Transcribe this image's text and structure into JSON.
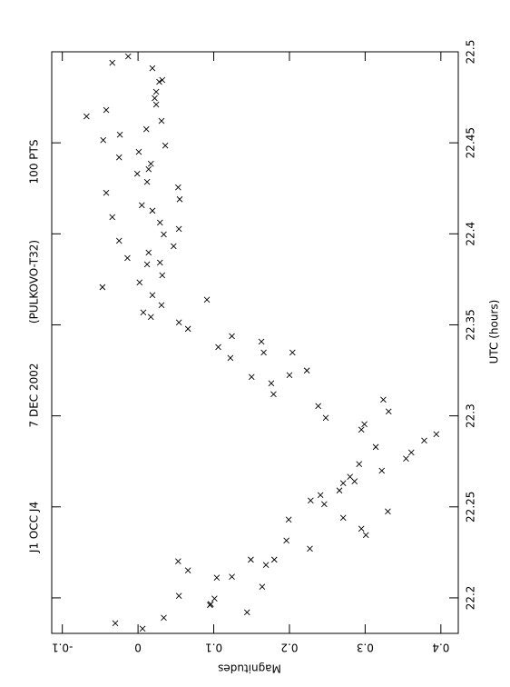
{
  "chart_data": {
    "type": "scatter",
    "title_parts": [
      "J1 OCC J4",
      "7 DEC 2002",
      "(PULKOVO-T32)",
      "100 PTS"
    ],
    "x_label": "UTC (hours)",
    "y_label": "Magnitudes",
    "xlim": [
      22.1805,
      22.5
    ],
    "ylim": [
      -0.114,
      0.423
    ],
    "xticks": [
      22.2,
      22.25,
      22.3,
      22.35,
      22.4,
      22.45,
      22.5
    ],
    "yticks": [
      -0.1,
      0,
      0.1,
      0.2,
      0.3,
      0.4
    ],
    "color": "#000000",
    "x": [
      22.494,
      22.4975,
      22.491,
      22.478,
      22.4835,
      22.4845,
      22.4745,
      22.471,
      22.4645,
      22.468,
      22.462,
      22.4515,
      22.4575,
      22.4545,
      22.4485,
      22.445,
      22.442,
      22.4385,
      22.433,
      22.4355,
      22.4285,
      22.4225,
      22.4255,
      22.419,
      22.4157,
      22.4092,
      22.4127,
      22.4062,
      22.3962,
      22.4027,
      22.3997,
      22.3932,
      22.3867,
      22.3897,
      22.3832,
      22.3842,
      22.3707,
      22.3733,
      22.3772,
      22.3663,
      22.3608,
      22.3568,
      22.3543,
      22.3638,
      22.3513,
      22.3478,
      22.3378,
      22.3438,
      22.3408,
      22.3318,
      22.3348,
      22.3348,
      22.3214,
      22.3224,
      22.3249,
      22.3179,
      22.3119,
      22.3054,
      22.2989,
      22.3089,
      22.3024,
      22.2954,
      22.2924,
      22.2829,
      22.2864,
      22.2899,
      22.2799,
      22.2699,
      22.2735,
      22.2765,
      22.2665,
      22.263,
      22.264,
      22.2565,
      22.2535,
      22.2515,
      22.259,
      22.244,
      22.243,
      22.238,
      22.2345,
      22.2475,
      22.227,
      22.2315,
      22.221,
      22.221,
      22.2111,
      22.2181,
      22.2061,
      22.1961,
      22.2011,
      22.1996,
      22.1966,
      22.2201,
      22.2151,
      22.2116,
      22.1921,
      22.1891,
      22.1831,
      22.1861
    ],
    "values": [
      -0.034,
      -0.013,
      0.019,
      0.024,
      0.028,
      0.032,
      0.022,
      0.024,
      -0.068,
      -0.042,
      0.031,
      -0.046,
      0.011,
      -0.024,
      0.036,
      0.001,
      -0.025,
      0.017,
      -0.001,
      0.014,
      0.012,
      -0.042,
      0.053,
      0.055,
      0.005,
      -0.034,
      0.019,
      0.029,
      -0.025,
      0.054,
      0.034,
      0.047,
      -0.014,
      0.014,
      0.012,
      0.029,
      -0.047,
      0.002,
      0.032,
      0.019,
      0.031,
      0.007,
      0.017,
      0.091,
      0.054,
      0.066,
      0.106,
      0.124,
      0.163,
      0.122,
      0.166,
      0.204,
      0.15,
      0.2,
      0.223,
      0.176,
      0.179,
      0.238,
      0.248,
      0.324,
      0.331,
      0.299,
      0.295,
      0.314,
      0.378,
      0.394,
      0.361,
      0.322,
      0.292,
      0.354,
      0.28,
      0.271,
      0.286,
      0.241,
      0.228,
      0.246,
      0.266,
      0.271,
      0.199,
      0.295,
      0.301,
      0.33,
      0.227,
      0.196,
      0.18,
      0.149,
      0.104,
      0.169,
      0.164,
      0.095,
      0.054,
      0.101,
      0.096,
      0.053,
      0.066,
      0.124,
      0.144,
      0.034,
      0.006,
      -0.03
    ]
  }
}
